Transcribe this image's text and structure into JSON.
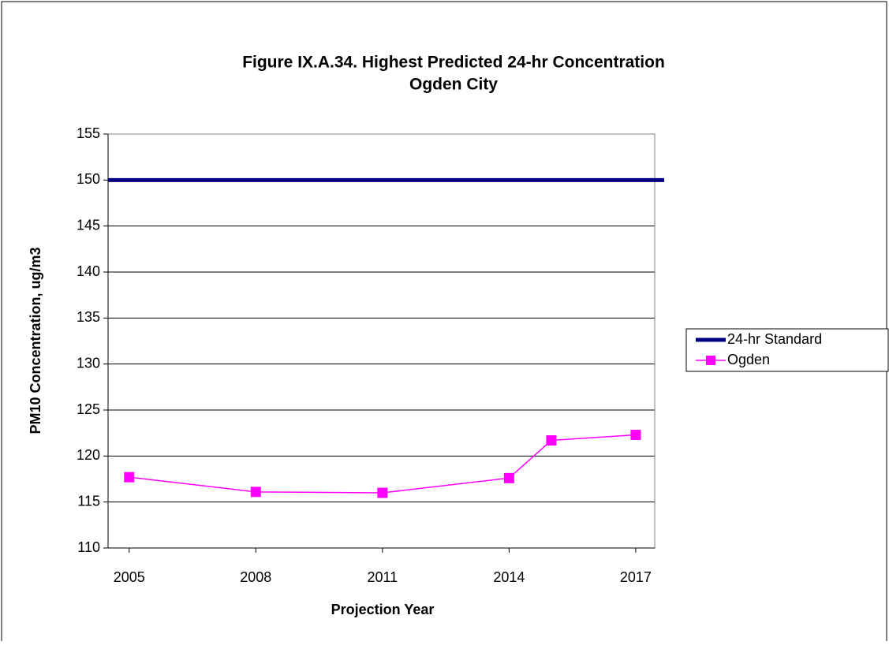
{
  "chart_data": {
    "type": "line",
    "title": "Figure IX.A.34.  Highest Predicted 24-hr Concentration",
    "subtitle": "Ogden City",
    "x_label": "Projection Year",
    "y_label": "PM10 Concentration, ug/m3",
    "xlim": [
      2004.5,
      2017.45
    ],
    "xticks": [
      2005,
      2008,
      2011,
      2014,
      2017
    ],
    "ylim": [
      110,
      155
    ],
    "yticks": [
      110,
      115,
      120,
      125,
      130,
      135,
      140,
      145,
      150,
      155
    ],
    "grid": true,
    "legend": "right",
    "series": [
      {
        "name": "24-hr Standard",
        "color": "#000080",
        "style": "horizontal-line",
        "values": [
          150
        ]
      },
      {
        "name": "Ogden",
        "color": "#ff00ff",
        "x": [
          2005,
          2008,
          2011,
          2014,
          2015,
          2017
        ],
        "values": [
          117.7,
          116.1,
          116.0,
          117.6,
          121.7,
          122.3
        ]
      }
    ]
  }
}
